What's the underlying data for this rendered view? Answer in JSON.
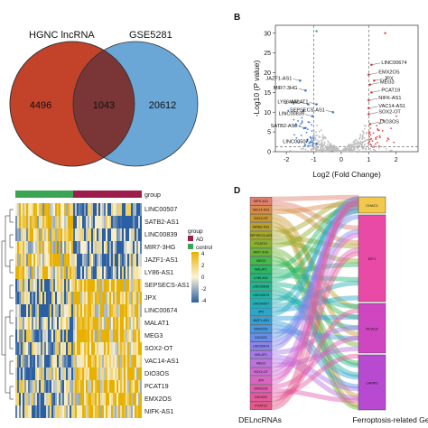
{
  "panel_a": {
    "left_set_label": "HGNC lncRNA",
    "right_set_label": "GSE5281",
    "left_only": "4496",
    "intersection": "1043",
    "right_only": "20612",
    "colors": {
      "left": "#c3422a",
      "right": "#6aa7d6",
      "overlap": "#7a3536"
    }
  },
  "panel_b": {
    "panel_letter": "B",
    "chart_data": {
      "type": "scatter",
      "xlabel": "Log2 (Fold Change)",
      "ylabel": "-Log10 (P value)",
      "xticks": [
        "-2",
        "-1",
        "0",
        "1",
        "2"
      ],
      "yticks": [
        "0",
        "5",
        "10",
        "15",
        "20",
        "25",
        "30"
      ],
      "xlim": [
        -2.4,
        2.8
      ],
      "ylim": [
        0,
        32
      ],
      "thresholds": {
        "x": [
          -1,
          1
        ],
        "y": 1.3
      },
      "labeled_points": [
        {
          "label": "LINC00674",
          "x": 1.1,
          "y": 22
        },
        {
          "label": "EMX2OS",
          "x": 1.0,
          "y": 19.5
        },
        {
          "label": "JPX",
          "x": 1.2,
          "y": 18
        },
        {
          "label": "MEG3",
          "x": 1.05,
          "y": 17
        },
        {
          "label": "PCAT19",
          "x": 1.1,
          "y": 15
        },
        {
          "label": "NIFK-AS1",
          "x": 1.0,
          "y": 13
        },
        {
          "label": "VAC14-AS1",
          "x": 1.0,
          "y": 11
        },
        {
          "label": "MALAT1",
          "x": -0.9,
          "y": 12
        },
        {
          "label": "SEPSECS-AS1",
          "x": -0.3,
          "y": 10
        },
        {
          "label": "SOX2-OT",
          "x": 1.0,
          "y": 9.5
        },
        {
          "label": "DIO3OS",
          "x": 1.05,
          "y": 7
        },
        {
          "label": "JAZF1-AS1",
          "x": -1.5,
          "y": 18
        },
        {
          "label": "MIR7-3HG",
          "x": -1.3,
          "y": 15.5
        },
        {
          "label": "LY86-AS1",
          "x": -1.2,
          "y": 12
        },
        {
          "label": "LINC00839",
          "x": -1.05,
          "y": 9
        },
        {
          "label": "SATB2-AS1",
          "x": -1.3,
          "y": 6
        },
        {
          "label": "LINC00507",
          "x": -0.9,
          "y": 2
        }
      ],
      "colors": {
        "up": "#e34a4a",
        "down": "#4a7fd1",
        "ns": "#bdbdbd"
      }
    }
  },
  "panel_c": {
    "legend": {
      "scale_title": "",
      "scale_ticks": [
        "4",
        "2",
        "0",
        "-2",
        "-4"
      ],
      "group_title": "group",
      "groups": [
        {
          "name": "AD",
          "color": "#9c1c4b"
        },
        {
          "name": "control",
          "color": "#3aa655"
        }
      ]
    },
    "top_bar_label": "group",
    "genes": [
      "LINC00507",
      "SATB2-AS1",
      "LINC00839",
      "MIR7-3HG",
      "JAZF1-AS1",
      "LY86-AS1",
      "SEPSECS-AS1",
      "JPX",
      "LINC00674",
      "MALAT1",
      "MEG3",
      "SOX2-OT",
      "VAC14-AS1",
      "DIO3OS",
      "PCAT19",
      "EMX2OS",
      "NIFK-AS1"
    ],
    "colors": {
      "high": "#e8b100",
      "mid": "#fbf3d8",
      "low": "#2a5fa3"
    }
  },
  "panel_d": {
    "panel_letter": "D",
    "left_axis_label": "DELncRNAs",
    "right_axis_label": "Ferroptosis-related Ge",
    "left_nodes": [
      "NIFK-AS1",
      "VAC14-AS1",
      "SOX2-OT",
      "SATB2-AS1",
      "SEPSECS-AS1",
      "PCAT19",
      "MIR7-3HG",
      "MEG3",
      "MALAT1",
      "LY86-AS1",
      "LINC00839",
      "LINC00674",
      "LINC00507",
      "JPX",
      "JAZF1-AS1",
      "EMX2OS",
      "DIO3OS",
      "LINC00674",
      "MALAT1",
      "MEG3",
      "SOX2-OT",
      "JPX",
      "EMX2OS",
      "DIO3OS",
      "PCAT19"
    ],
    "right_nodes": [
      "CHAC1",
      "EIF1",
      "NCALD",
      "LAMP2"
    ],
    "left_colors": [
      "#e07f6e",
      "#d98b48",
      "#c9962f",
      "#b9a12a",
      "#a6a92b",
      "#8daf2f",
      "#6db43a",
      "#46b84d",
      "#2ab964",
      "#22b87b",
      "#1fb690",
      "#21b3a4",
      "#26aeb8",
      "#2aa7c9",
      "#32a0d8",
      "#4a97e2",
      "#6a8ee8",
      "#8a84ea",
      "#a67ae8",
      "#bd72e0",
      "#cf6ad4",
      "#db63c4",
      "#e25db1",
      "#e45a9c",
      "#e35987"
    ],
    "right_colors": [
      "#f2c94c",
      "#e94aa5",
      "#cf46c0",
      "#b84ad1"
    ]
  }
}
